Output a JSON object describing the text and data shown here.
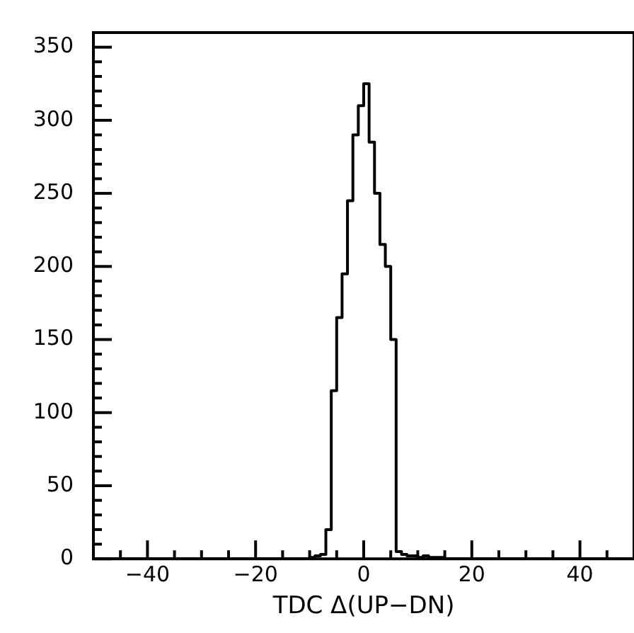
{
  "chart_data": {
    "type": "histogram",
    "xlabel": "TDC Δ(UP−DN)",
    "bins": [
      -50,
      -49,
      -48,
      -47,
      -46,
      -45,
      -44,
      -43,
      -42,
      -41,
      -40,
      -39,
      -38,
      -37,
      -36,
      -35,
      -34,
      -33,
      -32,
      -31,
      -30,
      -29,
      -28,
      -27,
      -26,
      -25,
      -24,
      -23,
      -22,
      -21,
      -20,
      -19,
      -18,
      -17,
      -16,
      -15,
      -14,
      -13,
      -12,
      -11,
      -10,
      -9,
      -8,
      -7,
      -6,
      -5,
      -4,
      -3,
      -2,
      -1,
      0,
      1,
      2,
      3,
      4,
      5,
      6,
      7,
      8,
      9,
      10,
      11,
      12,
      13,
      14,
      15,
      16,
      17,
      18,
      19,
      20,
      21,
      22,
      23,
      24,
      25,
      26,
      27,
      28,
      29,
      30,
      31,
      32,
      33,
      34,
      35,
      36,
      37,
      38,
      39,
      40,
      41,
      42,
      43,
      44,
      45,
      46,
      47,
      48,
      49,
      50
    ],
    "values": [
      0,
      0,
      0,
      0,
      0,
      0,
      0,
      0,
      0,
      0,
      0,
      0,
      0,
      0,
      0,
      0,
      0,
      0,
      0,
      0,
      0,
      0,
      0,
      0,
      0,
      0,
      0,
      0,
      0,
      0,
      0,
      0,
      0,
      0,
      0,
      0,
      0,
      0,
      0,
      0,
      1,
      2,
      3,
      20,
      115,
      165,
      195,
      245,
      290,
      310,
      325,
      285,
      250,
      215,
      200,
      150,
      5,
      3,
      2,
      2,
      1,
      2,
      1,
      1,
      1,
      0,
      0,
      0,
      0,
      0,
      0,
      0,
      0,
      0,
      0,
      0,
      0,
      0,
      0,
      0,
      0,
      0,
      0,
      0,
      0,
      0,
      0,
      0,
      0,
      0,
      0,
      0,
      0,
      0,
      0,
      0,
      0,
      0,
      0,
      0
    ],
    "color": "#000000",
    "xlim": [
      -50,
      50
    ],
    "xticks": [
      {
        "value": -45,
        "label": null
      },
      -40,
      {
        "value": -35,
        "label": null
      },
      {
        "value": -30,
        "label": null
      },
      {
        "value": -25,
        "label": null
      },
      -20,
      {
        "value": -15,
        "label": null
      },
      {
        "value": -10,
        "label": null
      },
      {
        "value": -5,
        "label": null
      },
      0,
      {
        "value": 5,
        "label": null
      },
      {
        "value": 10,
        "label": null
      },
      {
        "value": 15,
        "label": null
      },
      20,
      {
        "value": 25,
        "label": null
      },
      {
        "value": 30,
        "label": null
      },
      {
        "value": 35,
        "label": null
      },
      40,
      {
        "value": 45,
        "label": null
      }
    ],
    "ylim": [
      0,
      360
    ],
    "yticks": [
      0,
      {
        "value": 10,
        "label": null
      },
      {
        "value": 20,
        "label": null
      },
      {
        "value": 30,
        "label": null
      },
      {
        "value": 40,
        "label": null
      },
      50,
      {
        "value": 60,
        "label": null
      },
      {
        "value": 70,
        "label": null
      },
      {
        "value": 80,
        "label": null
      },
      {
        "value": 90,
        "label": null
      },
      100,
      {
        "value": 110,
        "label": null
      },
      {
        "value": 120,
        "label": null
      },
      {
        "value": 130,
        "label": null
      },
      {
        "value": 140,
        "label": null
      },
      150,
      {
        "value": 160,
        "label": null
      },
      {
        "value": 170,
        "label": null
      },
      {
        "value": 180,
        "label": null
      },
      {
        "value": 190,
        "label": null
      },
      200,
      {
        "value": 210,
        "label": null
      },
      {
        "value": 220,
        "label": null
      },
      {
        "value": 230,
        "label": null
      },
      {
        "value": 240,
        "label": null
      },
      250,
      {
        "value": 260,
        "label": null
      },
      {
        "value": 270,
        "label": null
      },
      {
        "value": 280,
        "label": null
      },
      {
        "value": 290,
        "label": null
      },
      300,
      {
        "value": 310,
        "label": null
      },
      {
        "value": 320,
        "label": null
      },
      {
        "value": 330,
        "label": null
      },
      {
        "value": 340,
        "label": null
      },
      350
    ],
    "grid": false,
    "legend": false
  }
}
